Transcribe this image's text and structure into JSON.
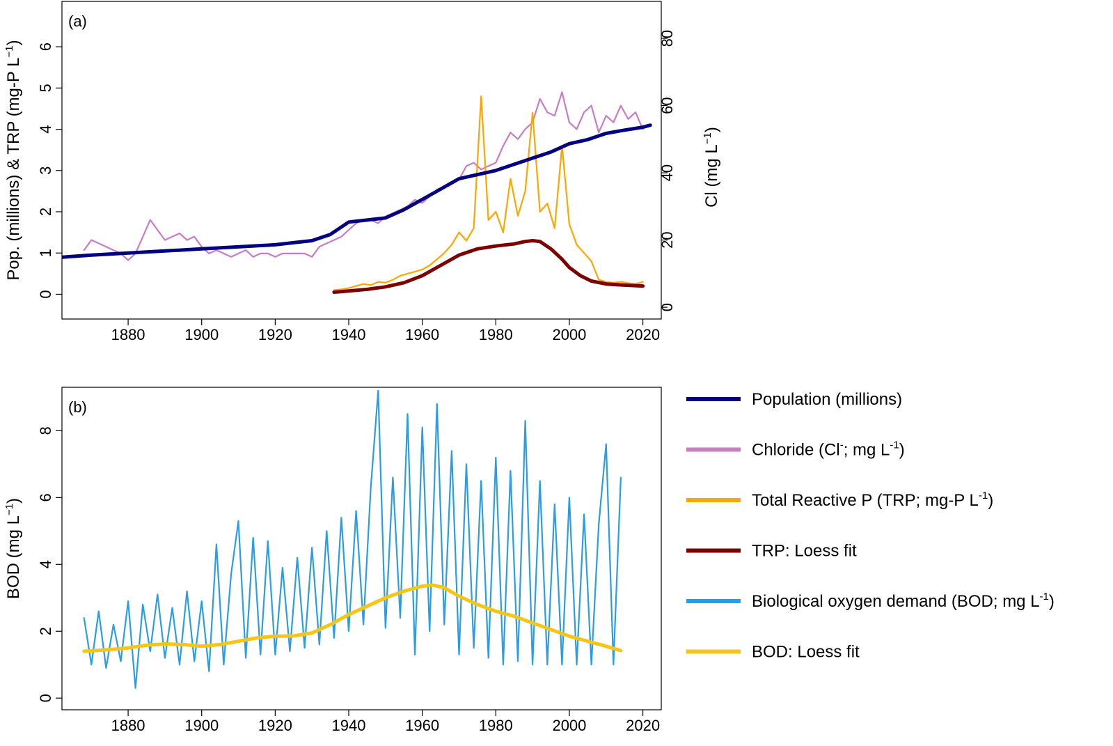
{
  "chart_data": [
    {
      "id": "a",
      "type": "line",
      "panel_label": "(a)",
      "xlim": [
        1862,
        2025
      ],
      "x_ticks": [
        1880,
        1900,
        1920,
        1940,
        1960,
        1980,
        2000,
        2020
      ],
      "y_left": {
        "label": "Pop. (millions) & TRP (mg-P L",
        "label_sup": "−1",
        "label_end": ")",
        "lim": [
          -0.6,
          7.1
        ],
        "ticks": [
          0,
          1,
          2,
          3,
          4,
          5,
          6
        ]
      },
      "y_right": {
        "label": "Cl (mg L",
        "label_sup": "−1",
        "label_end": ")",
        "lim": [
          -3.5,
          91
        ],
        "ticks": [
          0,
          20,
          40,
          60,
          80
        ]
      },
      "series": [
        {
          "name": "Chloride",
          "axis": "right",
          "color": "#c77cc4",
          "x": [
            1868,
            1870,
            1872,
            1874,
            1876,
            1878,
            1880,
            1882,
            1884,
            1886,
            1888,
            1890,
            1892,
            1894,
            1896,
            1898,
            1900,
            1902,
            1904,
            1906,
            1908,
            1910,
            1912,
            1914,
            1916,
            1918,
            1920,
            1922,
            1924,
            1926,
            1928,
            1930,
            1932,
            1934,
            1936,
            1938,
            1940,
            1942,
            1944,
            1946,
            1948,
            1950,
            1952,
            1954,
            1956,
            1958,
            1960,
            1962,
            1964,
            1966,
            1968,
            1970,
            1972,
            1974,
            1976,
            1978,
            1980,
            1982,
            1984,
            1986,
            1988,
            1990,
            1992,
            1994,
            1996,
            1998,
            2000,
            2002,
            2004,
            2006,
            2008,
            2010,
            2012,
            2014,
            2016,
            2018,
            2020
          ],
          "values": [
            17,
            20,
            19,
            18,
            17,
            16,
            14,
            16,
            21,
            26,
            23,
            20,
            21,
            22,
            20,
            21,
            18,
            16,
            17,
            16,
            15,
            16,
            17,
            15,
            16,
            16,
            15,
            16,
            16,
            16,
            16,
            15,
            18,
            19,
            20,
            21,
            23,
            25,
            26,
            26,
            25,
            27,
            28,
            29,
            30,
            32,
            31,
            33,
            35,
            36,
            37,
            38,
            42,
            43,
            41,
            42,
            43,
            48,
            52,
            50,
            53,
            55,
            62,
            58,
            57,
            64,
            55,
            53,
            58,
            60,
            52,
            57,
            55,
            60,
            56,
            58,
            53
          ]
        },
        {
          "name": "Total Reactive P",
          "axis": "left",
          "color": "#ffa500",
          "x": [
            1936,
            1938,
            1940,
            1942,
            1944,
            1946,
            1948,
            1950,
            1952,
            1954,
            1956,
            1958,
            1960,
            1962,
            1964,
            1966,
            1968,
            1970,
            1972,
            1974,
            1976,
            1978,
            1980,
            1982,
            1984,
            1986,
            1988,
            1990,
            1992,
            1994,
            1996,
            1998,
            2000,
            2002,
            2004,
            2006,
            2008,
            2010,
            2012,
            2014,
            2016,
            2018,
            2020
          ],
          "values": [
            0.1,
            0.12,
            0.15,
            0.2,
            0.25,
            0.22,
            0.3,
            0.28,
            0.35,
            0.45,
            0.5,
            0.55,
            0.6,
            0.7,
            0.85,
            1.0,
            1.2,
            1.5,
            1.3,
            1.6,
            4.8,
            1.8,
            2.0,
            1.5,
            2.8,
            1.9,
            2.5,
            4.4,
            2.0,
            2.2,
            1.6,
            3.6,
            1.7,
            1.2,
            1.0,
            0.8,
            0.35,
            0.3,
            0.28,
            0.3,
            0.27,
            0.25,
            0.3
          ]
        },
        {
          "name": "Population",
          "axis": "left",
          "color": "#000080",
          "x": [
            1862,
            1870,
            1880,
            1890,
            1900,
            1910,
            1920,
            1925,
            1930,
            1935,
            1940,
            1945,
            1950,
            1955,
            1960,
            1965,
            1970,
            1975,
            1980,
            1985,
            1990,
            1995,
            2000,
            2005,
            2010,
            2015,
            2020,
            2022
          ],
          "values": [
            0.9,
            0.95,
            1.0,
            1.05,
            1.1,
            1.15,
            1.2,
            1.25,
            1.3,
            1.45,
            1.75,
            1.8,
            1.85,
            2.05,
            2.3,
            2.55,
            2.8,
            2.9,
            3.0,
            3.15,
            3.3,
            3.45,
            3.65,
            3.75,
            3.9,
            3.98,
            4.05,
            4.1
          ]
        },
        {
          "name": "TRP: Loess fit",
          "axis": "left",
          "color": "#7b0000",
          "x": [
            1936,
            1940,
            1945,
            1950,
            1955,
            1960,
            1965,
            1970,
            1975,
            1980,
            1985,
            1988,
            1990,
            1992,
            1995,
            1998,
            2000,
            2003,
            2006,
            2010,
            2015,
            2020
          ],
          "values": [
            0.05,
            0.08,
            0.12,
            0.18,
            0.28,
            0.45,
            0.7,
            0.95,
            1.1,
            1.17,
            1.22,
            1.28,
            1.3,
            1.28,
            1.1,
            0.85,
            0.65,
            0.45,
            0.32,
            0.25,
            0.22,
            0.2
          ]
        }
      ]
    },
    {
      "id": "b",
      "type": "line",
      "panel_label": "(b)",
      "xlim": [
        1862,
        2025
      ],
      "x_ticks": [
        1880,
        1900,
        1920,
        1940,
        1960,
        1980,
        2000,
        2020
      ],
      "y_left": {
        "label": "BOD (mg L",
        "label_sup": "−1",
        "label_end": ")",
        "lim": [
          -0.35,
          9.3
        ],
        "ticks": [
          0,
          2,
          4,
          6,
          8
        ]
      },
      "series": [
        {
          "name": "Biological oxygen demand",
          "axis": "left",
          "color": "#2a9de5",
          "x": [
            1868,
            1870,
            1872,
            1874,
            1876,
            1878,
            1880,
            1882,
            1884,
            1886,
            1888,
            1890,
            1892,
            1894,
            1896,
            1898,
            1900,
            1902,
            1904,
            1906,
            1908,
            1910,
            1912,
            1914,
            1916,
            1918,
            1920,
            1922,
            1924,
            1926,
            1928,
            1930,
            1932,
            1934,
            1936,
            1938,
            1940,
            1942,
            1944,
            1946,
            1948,
            1950,
            1952,
            1954,
            1956,
            1958,
            1960,
            1962,
            1964,
            1966,
            1968,
            1970,
            1972,
            1974,
            1976,
            1978,
            1980,
            1982,
            1984,
            1986,
            1988,
            1990,
            1992,
            1994,
            1996,
            1998,
            2000,
            2002,
            2004,
            2006,
            2008,
            2010,
            2012,
            2014
          ],
          "values": [
            2.4,
            1.0,
            2.6,
            0.9,
            2.2,
            1.1,
            2.9,
            0.3,
            2.8,
            1.4,
            3.1,
            1.2,
            2.7,
            1.0,
            3.2,
            1.1,
            2.9,
            0.8,
            4.6,
            1.0,
            3.7,
            5.3,
            1.2,
            4.8,
            1.3,
            4.7,
            1.3,
            3.9,
            1.4,
            4.2,
            1.5,
            4.5,
            1.6,
            5.0,
            1.8,
            5.4,
            2.0,
            5.6,
            2.2,
            6.3,
            9.2,
            2.1,
            6.6,
            2.4,
            8.5,
            1.3,
            8.1,
            2.0,
            8.8,
            2.2,
            7.4,
            1.3,
            7.0,
            1.5,
            6.5,
            1.2,
            7.2,
            1.0,
            6.8,
            1.1,
            8.3,
            1.0,
            6.5,
            1.0,
            5.8,
            1.0,
            6.0,
            1.0,
            5.5,
            1.0,
            5.2,
            7.6,
            1.0,
            6.6
          ]
        },
        {
          "name": "BOD: Loess fit",
          "axis": "left",
          "color": "#f5c518",
          "x": [
            1868,
            1875,
            1880,
            1885,
            1890,
            1895,
            1900,
            1905,
            1910,
            1915,
            1920,
            1925,
            1930,
            1935,
            1940,
            1945,
            1950,
            1955,
            1960,
            1963,
            1966,
            1970,
            1975,
            1980,
            1985,
            1990,
            1995,
            2000,
            2005,
            2010,
            2014
          ],
          "values": [
            1.4,
            1.45,
            1.5,
            1.58,
            1.62,
            1.6,
            1.55,
            1.6,
            1.7,
            1.8,
            1.85,
            1.86,
            1.95,
            2.2,
            2.5,
            2.75,
            3.0,
            3.2,
            3.35,
            3.38,
            3.3,
            3.05,
            2.8,
            2.6,
            2.45,
            2.25,
            2.05,
            1.85,
            1.7,
            1.55,
            1.42
          ]
        }
      ]
    }
  ],
  "legend": [
    {
      "label": "Population (millions)",
      "sup": "",
      "after": "",
      "color": "#000080"
    },
    {
      "label": "Chloride (Cl",
      "sup": "-",
      "after": "; mg L",
      "sup2": "-1",
      "after2": ")",
      "color": "#c77cc4"
    },
    {
      "label": "Total Reactive P (TRP; mg-P L",
      "sup": "-1",
      "after": ")",
      "color": "#ffa500"
    },
    {
      "label": "TRP: Loess fit",
      "sup": "",
      "after": "",
      "color": "#7b0000"
    },
    {
      "label": "Biological oxygen demand (BOD; mg L",
      "sup": "-1",
      "after": ")",
      "color": "#2a9de5"
    },
    {
      "label": "BOD: Loess fit",
      "sup": "",
      "after": "",
      "color": "#f5c518"
    }
  ]
}
